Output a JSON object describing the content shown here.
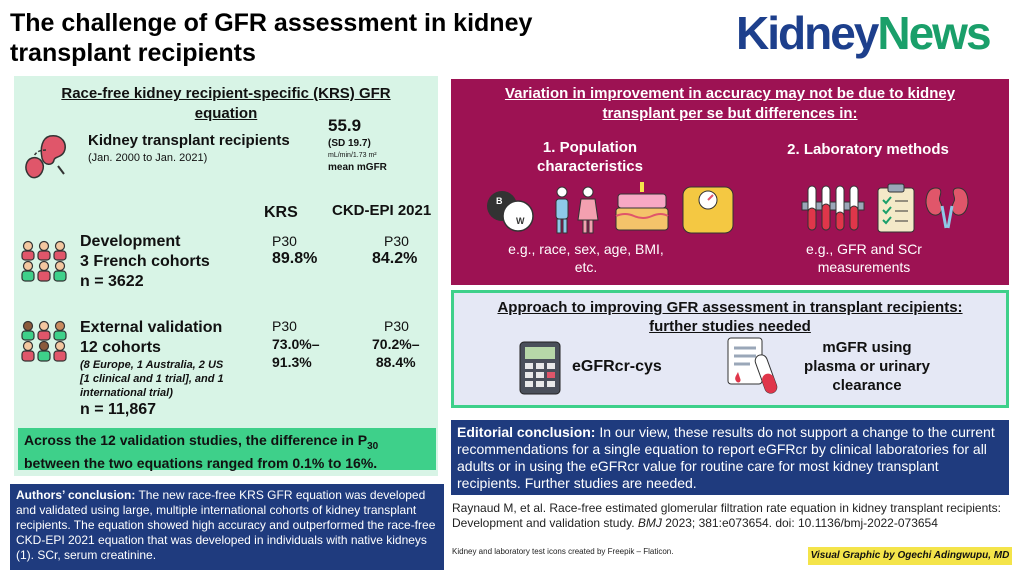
{
  "header": {
    "title_line1": "The challenge of GFR assessment in kidney",
    "title_line2": "transplant recipients",
    "logo_part1": "Kidney",
    "logo_part2": "News"
  },
  "left": {
    "title_line1": "Race-free kidney recipient-specific (KRS) GFR",
    "title_line2": "equation",
    "recipients_label": "Kidney transplant recipients",
    "recipients_dates": "(Jan. 2000 to Jan. 2021)",
    "mgfr_value": "55.9",
    "mgfr_sd": "(SD 19.7)",
    "mgfr_unit": "mL/min/1.73 m²",
    "mgfr_label": "mean mGFR",
    "col_krs": "KRS",
    "col_ckd": "CKD-EPI 2021",
    "dev_line1": "Development",
    "dev_line2": "3 French cohorts",
    "dev_line3": "n = 3622",
    "p30_label": "P30",
    "dev_krs": "89.8%",
    "dev_ckd": "84.2%",
    "ext_line1": "External validation",
    "ext_line2": "12 cohorts",
    "ext_detail1": "(8 Europe, 1 Australia, 2 US",
    "ext_detail2": "[1 clinical and 1 trial], and 1",
    "ext_detail3": "international trial)",
    "ext_n": "n = 11,867",
    "ext_krs_1": "73.0%–",
    "ext_krs_2": "91.3%",
    "ext_ckd_1": "70.2%–",
    "ext_ckd_2": "88.4%",
    "summary_1": "Across the 12 validation studies, the difference in P",
    "summary_sub": "30",
    "summary_2": "between the two equations ranged from 0.1% to 16%."
  },
  "authors": {
    "label": "Authors’ conclusion:",
    "text": " The new race-free KRS GFR equation was developed and validated using large, multiple international cohorts of kidney transplant recipients. The equation showed high accuracy and outperformed the race-free CKD-EPI 2021 equation that was developed in individuals with native kidneys (1). SCr, serum creatinine."
  },
  "variation": {
    "title_line1": "Variation in improvement in accuracy may not be due to kidney",
    "title_line2": "transplant per se but differences in:",
    "pop_title_1": "1. Population",
    "pop_title_2": "characteristics",
    "pop_desc_1": "e.g., race, sex, age, BMI,",
    "pop_desc_2": "etc.",
    "lab_title": "2. Laboratory methods",
    "lab_desc_1": "e.g., GFR and SCr",
    "lab_desc_2": "measurements",
    "venn_b": "B",
    "venn_w": "W"
  },
  "approach": {
    "title_line1": "Approach to improving GFR assessment in transplant recipients:",
    "title_line2": "further studies needed",
    "egfr": "eGFRcr-cys",
    "mgfr_1": "mGFR using",
    "mgfr_2": "plasma or urinary",
    "mgfr_3": "clearance"
  },
  "editorial": {
    "label": "Editorial conclusion:",
    "text": "  In our view, these results do not support a change to the current recommendations for a single equation to report eGFRcr by clinical laboratories for all adults or in using the eGFRcr value for routine care for most kidney transplant recipients. Further studies are needed."
  },
  "citation": {
    "part1": "Raynaud M, et al. Race-free estimated glomerular filtration rate equation in kidney transplant recipients: Development and validation study. ",
    "journal": "BMJ",
    "part2": " 2023; 381:e073654. doi: 10.1136/bmj-2022-073654"
  },
  "credits": {
    "icons": "Kidney and laboratory test icons created by Freepik – Flaticon.",
    "visual": "Visual Graphic by Ogechi Adingwupu, MD"
  },
  "colors": {
    "navy": "#1f3b7e",
    "maroon": "#9d1253",
    "mint": "#d8f4e6",
    "green": "#3ed08a",
    "yellow": "#f4e44a"
  }
}
